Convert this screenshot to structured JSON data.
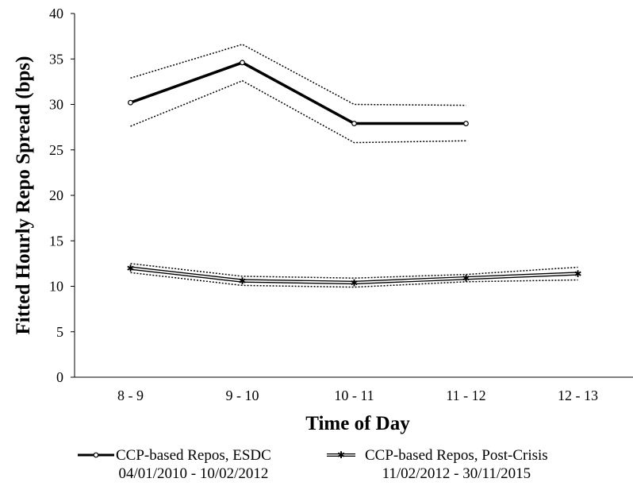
{
  "chart_data": {
    "type": "line",
    "categories": [
      "8 - 9",
      "9 - 10",
      "10 - 11",
      "11 - 12",
      "12 - 13"
    ],
    "xlabel": "Time of Day",
    "ylabel": "Fitted Hourly Repo Spread (bps)",
    "ylim": [
      0,
      40
    ],
    "yticks": [
      0,
      5,
      10,
      15,
      20,
      25,
      30,
      35,
      40
    ],
    "grid": false,
    "legend_position": "bottom",
    "series": [
      {
        "name": "CCP-based Repos, ESDC",
        "name_line2": "04/01/2010 - 10/02/2012",
        "style": "solid-thick-circle-markers",
        "color": "#000000",
        "values": [
          30.2,
          34.6,
          27.9,
          27.9,
          null
        ],
        "upper": [
          32.9,
          36.6,
          30.0,
          29.9,
          null
        ],
        "lower": [
          27.6,
          32.6,
          25.8,
          26.0,
          null
        ]
      },
      {
        "name": "CCP-based Repos, Post-Crisis",
        "name_line2": "11/02/2012 - 30/11/2015",
        "style": "double-line-star-markers",
        "color": "#000000",
        "values": [
          12.0,
          10.6,
          10.4,
          10.9,
          11.4
        ],
        "upper": [
          12.5,
          11.1,
          10.9,
          11.3,
          12.1
        ],
        "lower": [
          11.5,
          10.1,
          9.9,
          10.5,
          10.7
        ]
      }
    ]
  }
}
